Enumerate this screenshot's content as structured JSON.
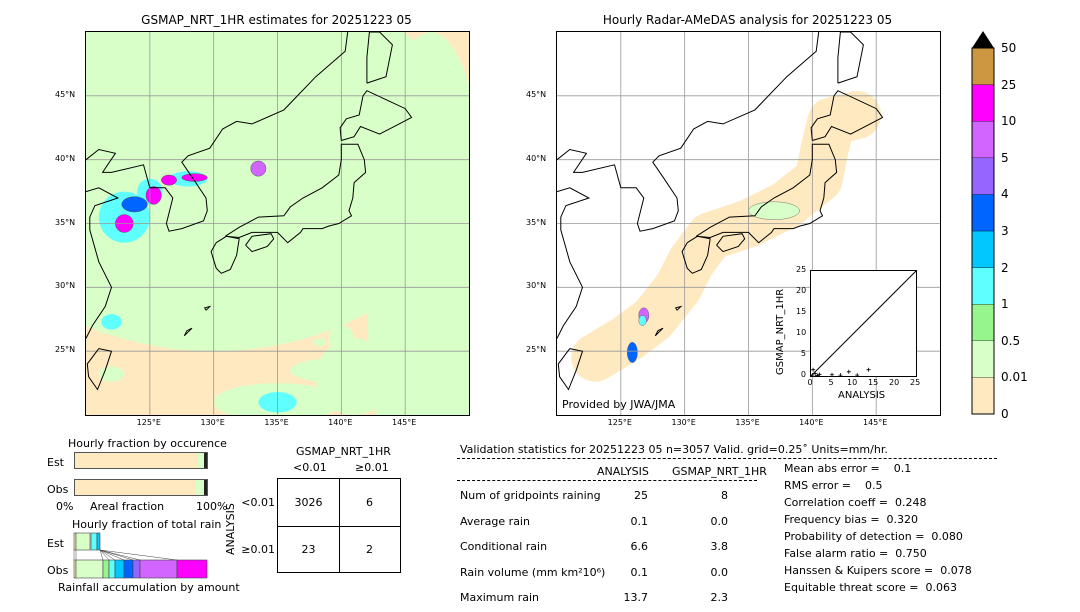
{
  "left_map": {
    "title": "GSMAP_NRT_1HR estimates for 20251223 05"
  },
  "right_map": {
    "title": "Hourly Radar-AMeDAS analysis for 20251223 05",
    "credit": "Provided by JWA/JMA"
  },
  "lon_ticks": [
    "125°E",
    "130°E",
    "135°E",
    "140°E",
    "145°E"
  ],
  "lat_ticks": [
    "45°N",
    "40°N",
    "35°N",
    "30°N",
    "25°N"
  ],
  "colorbar": {
    "labels": [
      "0",
      "0.01",
      "0.5",
      "1",
      "2",
      "3",
      "4",
      "5",
      "10",
      "25",
      "50"
    ],
    "colors": [
      "#fee9c0",
      "#d9ffc8",
      "#96f58c",
      "#5fffff",
      "#00c8ff",
      "#0064ff",
      "#9664ff",
      "#d264ff",
      "#ff00ff",
      "#cd9641"
    ],
    "extend_color": "#000000"
  },
  "chart_data": {
    "type": "scatter",
    "xlabel": "ANALYSIS",
    "ylabel": "GSMAP_NRT_1HR",
    "xlim": [
      0,
      25
    ],
    "ylim": [
      0,
      25
    ],
    "ticks": [
      "0",
      "5",
      "10",
      "15",
      "20",
      "25"
    ],
    "points": [
      [
        0.3,
        0.2
      ],
      [
        0.5,
        1.5
      ],
      [
        1,
        0.6
      ],
      [
        2,
        0.4
      ],
      [
        5,
        0.3
      ],
      [
        7,
        0.2
      ],
      [
        9,
        1
      ],
      [
        11,
        0.2
      ],
      [
        13.7,
        1.5
      ],
      [
        1.5,
        0.1
      ]
    ]
  },
  "occurrence": {
    "title": "Hourly fraction by occurence",
    "est": "Est",
    "obs": "Obs",
    "xmin": "0%",
    "xlabel": "Areal fraction",
    "xmax": "100%",
    "est_fractions": [
      0.93,
      0.05,
      0.02
    ],
    "obs_fractions": [
      0.915,
      0.065,
      0.02
    ]
  },
  "total_rain": {
    "title": "Hourly fraction of total rain",
    "est": "Est",
    "obs": "Obs",
    "xlabel": "Rainfall accumulation by amount"
  },
  "contingency": {
    "title": "GSMAP_NRT_1HR",
    "col_labels": [
      "<0.01",
      "≥0.01"
    ],
    "row_axis": "ANALYSIS",
    "row_labels": [
      "<0.01",
      "≥0.01"
    ],
    "cells": [
      [
        "3026",
        "6"
      ],
      [
        "23",
        "2"
      ]
    ]
  },
  "stats": {
    "header": "Validation statistics for 20251223 05  n=3057 Valid. grid=0.25˚ Units=mm/hr.",
    "col_headers": [
      "ANALYSIS",
      "GSMAP_NRT_1HR"
    ],
    "rows": [
      {
        "label": "Num of gridpoints raining",
        "a": "25",
        "g": "8"
      },
      {
        "label": "Average rain",
        "a": "0.1",
        "g": "0.0"
      },
      {
        "label": "Conditional rain",
        "a": "6.6",
        "g": "3.8"
      },
      {
        "label": "Rain volume (mm km²10⁶)",
        "a": "0.1",
        "g": "0.0"
      },
      {
        "label": "Maximum rain",
        "a": "13.7",
        "g": "2.3"
      }
    ],
    "scores": [
      "Mean abs error =    0.1",
      "RMS error =    0.5",
      "Correlation coeff =  0.248",
      "Frequency bias =  0.320",
      "Probability of detection =  0.080",
      "False alarm ratio =  0.750",
      "Hanssen & Kuipers score =  0.078",
      "Equitable threat score =  0.063"
    ]
  }
}
